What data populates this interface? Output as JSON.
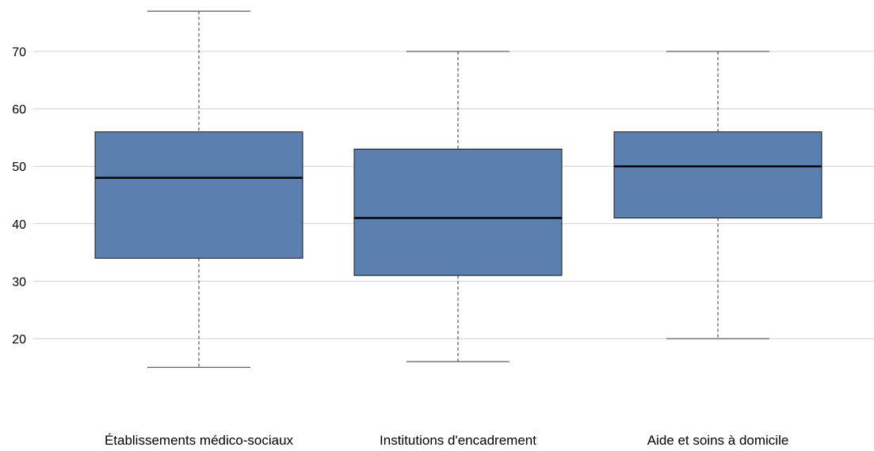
{
  "chart_data": {
    "type": "boxplot",
    "title": "",
    "xlabel": "",
    "ylabel": "",
    "ylim": [
      8,
      78
    ],
    "y_ticks": [
      20,
      30,
      40,
      50,
      60,
      70
    ],
    "grid": "horizontal",
    "legend": "none",
    "categories": [
      "Établissements médico-sociaux",
      "Institutions d'encadrement",
      "Aide et soins à domicile"
    ],
    "boxes": [
      {
        "category": "Établissements médico-sociaux",
        "whisker_low": 15,
        "q1": 34,
        "median": 48,
        "q3": 56,
        "whisker_high": 77
      },
      {
        "category": "Institutions d'encadrement",
        "whisker_low": 16,
        "q1": 31,
        "median": 41,
        "q3": 53,
        "whisker_high": 70
      },
      {
        "category": "Aide et soins à domicile",
        "whisker_low": 20,
        "q1": 41,
        "median": 50,
        "q3": 56,
        "whisker_high": 70
      }
    ],
    "colors": {
      "box_fill": "#5b7fae",
      "box_stroke": "#1a1a1a",
      "median": "#000000",
      "whisker": "#333333",
      "grid": "#cfcfcf"
    }
  }
}
